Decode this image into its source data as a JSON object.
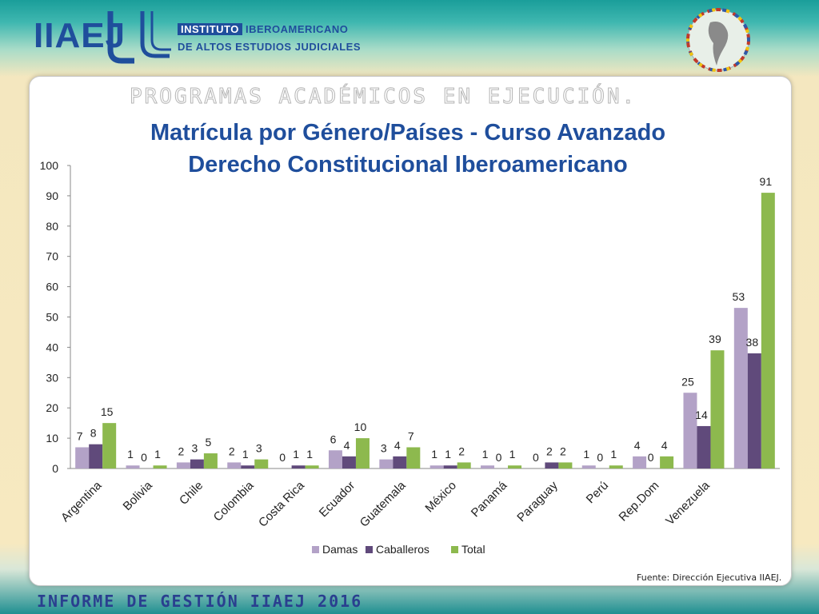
{
  "header": {
    "logo_abbr": "IIAEJ",
    "institute_line1_a": "INSTITUTO",
    "institute_line1_b": "IBEROAMERICANO",
    "institute_line2": "DE ALTOS ESTUDIOS JUDICIALES"
  },
  "slide": {
    "section_title": "PROGRAMAS ACADÉMICOS EN EJECUCIÓN.",
    "title_line1": "Matrícula por Género/Países - Curso Avanzado",
    "title_line2": "Derecho Constitucional Iberoamericano",
    "source": "Fuente: Dirección Ejecutiva IIAEJ.",
    "footer": "INFORME DE GESTIÓN IIAEJ 2016"
  },
  "colors": {
    "Damas": "#b3a2c7",
    "Caballeros": "#604a7b",
    "Total": "#8db94e",
    "title": "#1f4e9c"
  },
  "chart_data": {
    "type": "bar",
    "title": "Matrícula por Género/Países - Curso Avanzado Derecho Constitucional Iberoamericano",
    "categories": [
      "Argentina",
      "Bolivia",
      "Chile",
      "Colombia",
      "Costa Rica",
      "Ecuador",
      "Guatemala",
      "México",
      "Panamá",
      "Paraguay",
      "Perú",
      "Rep.Dom",
      "Venezuela"
    ],
    "series": [
      {
        "name": "Damas",
        "values": [
          7,
          1,
          2,
          2,
          0,
          6,
          3,
          1,
          1,
          0,
          1,
          4,
          25
        ]
      },
      {
        "name": "Caballeros",
        "values": [
          8,
          0,
          3,
          1,
          1,
          4,
          4,
          1,
          0,
          2,
          0,
          0,
          14
        ]
      },
      {
        "name": "Total",
        "values": [
          15,
          1,
          5,
          3,
          1,
          10,
          7,
          2,
          1,
          2,
          1,
          4,
          39
        ]
      }
    ],
    "extra_bars": [
      {
        "label_of": "Venezuela",
        "values": [
          53,
          38,
          91
        ]
      }
    ],
    "yticks": [
      0,
      10,
      20,
      30,
      40,
      50,
      60,
      70,
      80,
      90,
      100
    ],
    "ylim": [
      0,
      100
    ],
    "legend": [
      "Damas",
      "Caballeros",
      "Total"
    ],
    "legend_position": "bottom",
    "grid": false,
    "xlabel": "",
    "ylabel": ""
  }
}
